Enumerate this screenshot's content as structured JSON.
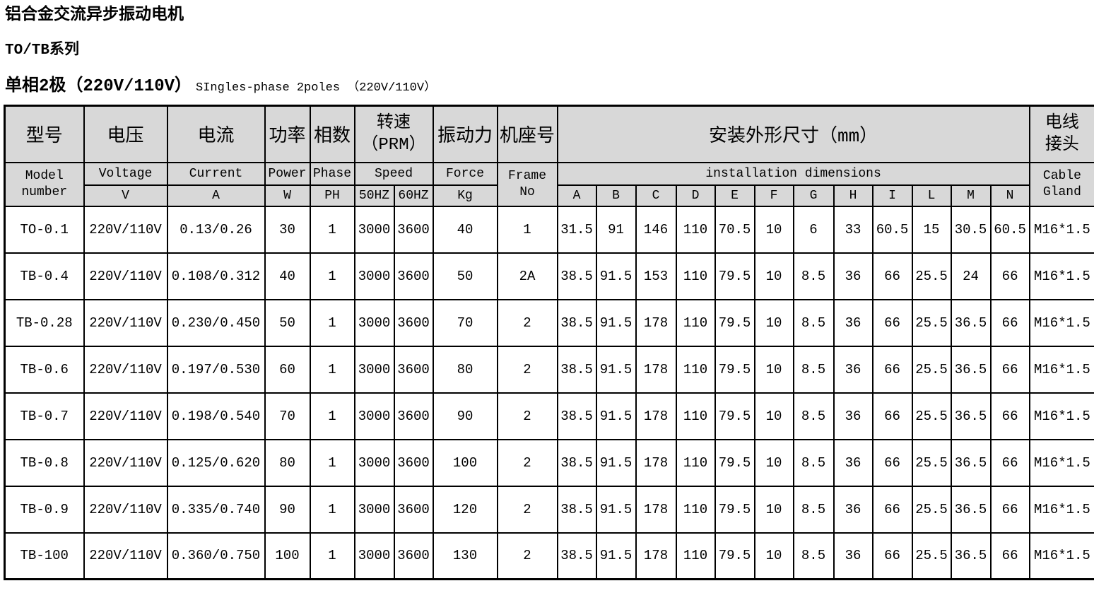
{
  "page": {
    "title": "铝合金交流异步振动电机",
    "series": "TO/TB系列",
    "subtitle_cn": "单相2极（220V/110V）",
    "subtitle_en": "SIngles-phase 2poles （220V/110V）"
  },
  "colors": {
    "header_bg": "#d8d8d8",
    "border": "#000000",
    "page_bg": "#ffffff"
  },
  "table": {
    "header": {
      "model": {
        "cn": "型号",
        "en": "Model\nnumber"
      },
      "voltage": {
        "cn": "电压",
        "en": "Voltage",
        "unit": "V"
      },
      "current": {
        "cn": "电流",
        "en": "Current",
        "unit": "A"
      },
      "power": {
        "cn": "功率",
        "en": "Power",
        "unit": "W"
      },
      "phase": {
        "cn": "相数",
        "en": "Phase",
        "unit": "PH"
      },
      "speed": {
        "cn": "转速\n（PRM）",
        "en": "Speed",
        "unit_50": "50HZ",
        "unit_60": "60HZ"
      },
      "force": {
        "cn": "振动力",
        "en": "Force",
        "unit": "Kg"
      },
      "frame": {
        "cn": "机座号",
        "en": "Frame\nNo"
      },
      "dimensions": {
        "cn": "安装外形尺寸（mm）",
        "en": "installation dimensions",
        "letters": [
          "A",
          "B",
          "C",
          "D",
          "E",
          "F",
          "G",
          "H",
          "I",
          "L",
          "M",
          "N"
        ]
      },
      "cable": {
        "cn": "电线\n接头",
        "en": "Cable\nGland"
      }
    },
    "rows": [
      {
        "model": "TO-0.1",
        "voltage": "220V/110V",
        "current": "0.13/0.26",
        "power": "30",
        "phase": "1",
        "speed_50hz": "3000",
        "speed_60hz": "3600",
        "force": "40",
        "frame_no": "1",
        "dims": [
          "31.5",
          "91",
          "146",
          "110",
          "70.5",
          "10",
          "6",
          "33",
          "60.5",
          "15",
          "30.5",
          "60.5"
        ],
        "cable_gland": "M16*1.5"
      },
      {
        "model": "TB-0.4",
        "voltage": "220V/110V",
        "current": "0.108/0.312",
        "power": "40",
        "phase": "1",
        "speed_50hz": "3000",
        "speed_60hz": "3600",
        "force": "50",
        "frame_no": "2A",
        "dims": [
          "38.5",
          "91.5",
          "153",
          "110",
          "79.5",
          "10",
          "8.5",
          "36",
          "66",
          "25.5",
          "24",
          "66"
        ],
        "cable_gland": "M16*1.5"
      },
      {
        "model": "TB-0.28",
        "voltage": "220V/110V",
        "current": "0.230/0.450",
        "power": "50",
        "phase": "1",
        "speed_50hz": "3000",
        "speed_60hz": "3600",
        "force": "70",
        "frame_no": "2",
        "dims": [
          "38.5",
          "91.5",
          "178",
          "110",
          "79.5",
          "10",
          "8.5",
          "36",
          "66",
          "25.5",
          "36.5",
          "66"
        ],
        "cable_gland": "M16*1.5"
      },
      {
        "model": "TB-0.6",
        "voltage": "220V/110V",
        "current": "0.197/0.530",
        "power": "60",
        "phase": "1",
        "speed_50hz": "3000",
        "speed_60hz": "3600",
        "force": "80",
        "frame_no": "2",
        "dims": [
          "38.5",
          "91.5",
          "178",
          "110",
          "79.5",
          "10",
          "8.5",
          "36",
          "66",
          "25.5",
          "36.5",
          "66"
        ],
        "cable_gland": "M16*1.5"
      },
      {
        "model": "TB-0.7",
        "voltage": "220V/110V",
        "current": "0.198/0.540",
        "power": "70",
        "phase": "1",
        "speed_50hz": "3000",
        "speed_60hz": "3600",
        "force": "90",
        "frame_no": "2",
        "dims": [
          "38.5",
          "91.5",
          "178",
          "110",
          "79.5",
          "10",
          "8.5",
          "36",
          "66",
          "25.5",
          "36.5",
          "66"
        ],
        "cable_gland": "M16*1.5"
      },
      {
        "model": "TB-0.8",
        "voltage": "220V/110V",
        "current": "0.125/0.620",
        "power": "80",
        "phase": "1",
        "speed_50hz": "3000",
        "speed_60hz": "3600",
        "force": "100",
        "frame_no": "2",
        "dims": [
          "38.5",
          "91.5",
          "178",
          "110",
          "79.5",
          "10",
          "8.5",
          "36",
          "66",
          "25.5",
          "36.5",
          "66"
        ],
        "cable_gland": "M16*1.5"
      },
      {
        "model": "TB-0.9",
        "voltage": "220V/110V",
        "current": "0.335/0.740",
        "power": "90",
        "phase": "1",
        "speed_50hz": "3000",
        "speed_60hz": "3600",
        "force": "120",
        "frame_no": "2",
        "dims": [
          "38.5",
          "91.5",
          "178",
          "110",
          "79.5",
          "10",
          "8.5",
          "36",
          "66",
          "25.5",
          "36.5",
          "66"
        ],
        "cable_gland": "M16*1.5"
      },
      {
        "model": "TB-100",
        "voltage": "220V/110V",
        "current": "0.360/0.750",
        "power": "100",
        "phase": "1",
        "speed_50hz": "3000",
        "speed_60hz": "3600",
        "force": "130",
        "frame_no": "2",
        "dims": [
          "38.5",
          "91.5",
          "178",
          "110",
          "79.5",
          "10",
          "8.5",
          "36",
          "66",
          "25.5",
          "36.5",
          "66"
        ],
        "cable_gland": "M16*1.5"
      }
    ]
  }
}
